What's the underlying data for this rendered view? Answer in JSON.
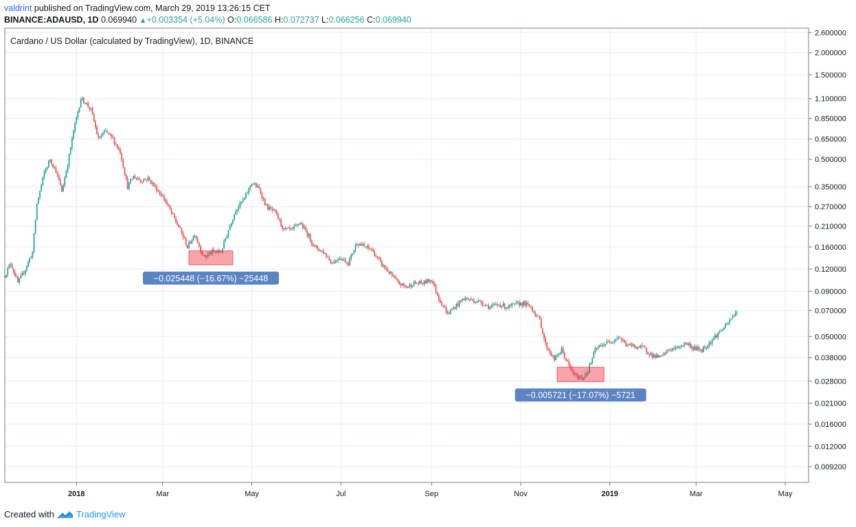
{
  "header": {
    "author": "valdrint",
    "published_text": "published on TradingView.com, March 29, 2019 13:26:15 CET",
    "symbol": "BINANCE:ADAUSD, 1D",
    "last_price": "0.069940",
    "change": "+0.003354 (+5.04%)",
    "open_label": "O:",
    "open": "0.066586",
    "high_label": "H:",
    "high": "0.072737",
    "low_label": "L:",
    "low": "0.066256",
    "close_label": "C:",
    "close": "0.069940"
  },
  "colors": {
    "up": "#26a69a",
    "down": "#ef5350",
    "grid": "#e8eef6",
    "axis": "#787b86",
    "measure_box": "#f23645",
    "measure_label_bg": "#5b84c4"
  },
  "footer": {
    "created_with": "Created with",
    "brand": "TradingView",
    "logo_icon": "tradingview-logo-icon"
  },
  "chart_data": {
    "type": "candlestick",
    "title": "Cardano / US Dollar (calculated by TradingView), 1D, BINANCE",
    "y_scale": "log",
    "ylim": [
      0.0075,
      2.75
    ],
    "y_ticks": [
      "2.600000",
      "2.000000",
      "1.500000",
      "1.100000",
      "0.850000",
      "0.650000",
      "0.500000",
      "0.350000",
      "0.270000",
      "0.210000",
      "0.160000",
      "0.120000",
      "0.090000",
      "0.070000",
      "0.050000",
      "0.038000",
      "0.028000",
      "0.021000",
      "0.016000",
      "0.012000",
      "0.009200"
    ],
    "x_ticks": [
      {
        "label": "2018",
        "date": "2018-01-01",
        "bold": true
      },
      {
        "label": "Mar",
        "date": "2018-03-01"
      },
      {
        "label": "May",
        "date": "2018-05-01"
      },
      {
        "label": "Jul",
        "date": "2018-07-01"
      },
      {
        "label": "Sep",
        "date": "2018-09-01"
      },
      {
        "label": "Nov",
        "date": "2018-11-01"
      },
      {
        "label": "2019",
        "date": "2019-01-01",
        "bold": true
      },
      {
        "label": "Mar",
        "date": "2019-03-01"
      },
      {
        "label": "May",
        "date": "2019-05-01"
      }
    ],
    "x_range": [
      "2017-11-13",
      "2019-05-17"
    ],
    "series_path": [
      [
        "2017-11-13",
        0.11
      ],
      [
        "2017-11-17",
        0.13
      ],
      [
        "2017-11-22",
        0.1
      ],
      [
        "2017-11-27",
        0.12
      ],
      [
        "2017-12-02",
        0.15
      ],
      [
        "2017-12-05",
        0.28
      ],
      [
        "2017-12-10",
        0.42
      ],
      [
        "2017-12-14",
        0.5
      ],
      [
        "2017-12-18",
        0.43
      ],
      [
        "2017-12-22",
        0.33
      ],
      [
        "2017-12-26",
        0.47
      ],
      [
        "2017-12-30",
        0.72
      ],
      [
        "2018-01-04",
        1.1
      ],
      [
        "2018-01-07",
        1.05
      ],
      [
        "2018-01-11",
        0.95
      ],
      [
        "2018-01-16",
        0.65
      ],
      [
        "2018-01-21",
        0.72
      ],
      [
        "2018-01-26",
        0.65
      ],
      [
        "2018-01-31",
        0.55
      ],
      [
        "2018-02-05",
        0.35
      ],
      [
        "2018-02-09",
        0.4
      ],
      [
        "2018-02-14",
        0.38
      ],
      [
        "2018-02-19",
        0.39
      ],
      [
        "2018-02-25",
        0.34
      ],
      [
        "2018-03-02",
        0.3
      ],
      [
        "2018-03-08",
        0.24
      ],
      [
        "2018-03-13",
        0.2
      ],
      [
        "2018-03-18",
        0.16
      ],
      [
        "2018-03-23",
        0.19
      ],
      [
        "2018-03-29",
        0.14
      ],
      [
        "2018-04-04",
        0.15
      ],
      [
        "2018-04-10",
        0.15
      ],
      [
        "2018-04-15",
        0.2
      ],
      [
        "2018-04-20",
        0.26
      ],
      [
        "2018-04-26",
        0.3
      ],
      [
        "2018-05-01",
        0.37
      ],
      [
        "2018-05-06",
        0.34
      ],
      [
        "2018-05-11",
        0.27
      ],
      [
        "2018-05-17",
        0.25
      ],
      [
        "2018-05-23",
        0.2
      ],
      [
        "2018-05-29",
        0.2
      ],
      [
        "2018-06-03",
        0.22
      ],
      [
        "2018-06-08",
        0.19
      ],
      [
        "2018-06-13",
        0.16
      ],
      [
        "2018-06-19",
        0.15
      ],
      [
        "2018-06-25",
        0.13
      ],
      [
        "2018-06-30",
        0.14
      ],
      [
        "2018-07-06",
        0.13
      ],
      [
        "2018-07-12",
        0.17
      ],
      [
        "2018-07-17",
        0.16
      ],
      [
        "2018-07-22",
        0.155
      ],
      [
        "2018-07-28",
        0.13
      ],
      [
        "2018-08-03",
        0.115
      ],
      [
        "2018-08-09",
        0.1
      ],
      [
        "2018-08-15",
        0.095
      ],
      [
        "2018-08-20",
        0.1
      ],
      [
        "2018-08-26",
        0.1
      ],
      [
        "2018-09-01",
        0.105
      ],
      [
        "2018-09-06",
        0.082
      ],
      [
        "2018-09-12",
        0.067
      ],
      [
        "2018-09-18",
        0.075
      ],
      [
        "2018-09-23",
        0.082
      ],
      [
        "2018-09-29",
        0.08
      ],
      [
        "2018-10-05",
        0.078
      ],
      [
        "2018-10-11",
        0.073
      ],
      [
        "2018-10-17",
        0.076
      ],
      [
        "2018-10-23",
        0.073
      ],
      [
        "2018-10-29",
        0.076
      ],
      [
        "2018-11-03",
        0.077
      ],
      [
        "2018-11-08",
        0.073
      ],
      [
        "2018-11-14",
        0.062
      ],
      [
        "2018-11-18",
        0.045
      ],
      [
        "2018-11-24",
        0.037
      ],
      [
        "2018-11-29",
        0.042
      ],
      [
        "2018-12-04",
        0.034
      ],
      [
        "2018-12-08",
        0.03
      ],
      [
        "2018-12-13",
        0.029
      ],
      [
        "2018-12-17",
        0.032
      ],
      [
        "2018-12-22",
        0.042
      ],
      [
        "2018-12-27",
        0.045
      ],
      [
        "2019-01-02",
        0.047
      ],
      [
        "2019-01-07",
        0.05
      ],
      [
        "2019-01-12",
        0.045
      ],
      [
        "2019-01-18",
        0.044
      ],
      [
        "2019-01-24",
        0.043
      ],
      [
        "2019-01-30",
        0.039
      ],
      [
        "2019-02-05",
        0.038
      ],
      [
        "2019-02-10",
        0.042
      ],
      [
        "2019-02-16",
        0.043
      ],
      [
        "2019-02-22",
        0.046
      ],
      [
        "2019-02-27",
        0.043
      ],
      [
        "2019-03-05",
        0.042
      ],
      [
        "2019-03-10",
        0.046
      ],
      [
        "2019-03-16",
        0.052
      ],
      [
        "2019-03-22",
        0.058
      ],
      [
        "2019-03-29",
        0.07
      ]
    ],
    "measurements": [
      {
        "from_date": "2018-03-19",
        "to_date": "2018-04-18",
        "top": 0.152,
        "bottom": 0.127,
        "label": "−0.025448 (−16.67%) −25448"
      },
      {
        "from_date": "2018-11-26",
        "to_date": "2018-12-28",
        "top": 0.0335,
        "bottom": 0.0278,
        "label": "−0.005721 (−17.07%) −5721"
      }
    ]
  }
}
